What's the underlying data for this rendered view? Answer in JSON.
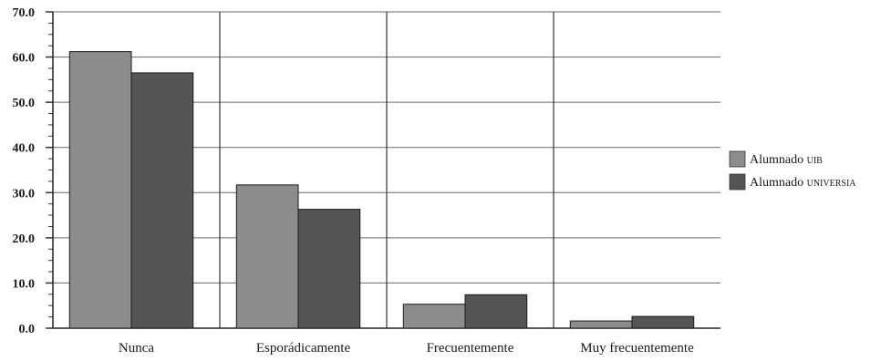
{
  "chart_data": {
    "type": "bar",
    "title": "",
    "xlabel": "",
    "ylabel": "",
    "categories": [
      "Nunca",
      "Esporádicamente",
      "Frecuentemente",
      "Muy frecuentemente"
    ],
    "series": [
      {
        "name": "Alumnado uib",
        "legend_main": "Alumnado",
        "legend_tag": "uib",
        "color": "#8c8c8c",
        "values": [
          61.2,
          31.7,
          5.3,
          1.6
        ]
      },
      {
        "name": "Alumnado universia",
        "legend_main": "Alumnado",
        "legend_tag": "universia",
        "color": "#555555",
        "values": [
          56.5,
          26.3,
          7.4,
          2.6
        ]
      }
    ],
    "ylim": [
      0,
      70
    ],
    "yticks": [
      "0.0",
      "10.0",
      "20.0",
      "30.0",
      "40.0",
      "50.0",
      "60.0",
      "70.0"
    ],
    "grid": true,
    "legend": "right"
  }
}
